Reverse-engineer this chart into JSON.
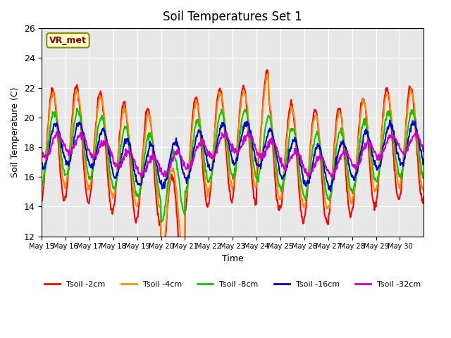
{
  "title": "Soil Temperatures Set 1",
  "xlabel": "Time",
  "ylabel": "Soil Temperature (C)",
  "ylim": [
    12,
    26
  ],
  "yticks": [
    12,
    14,
    16,
    18,
    20,
    22,
    24,
    26
  ],
  "annotation_text": "VR_met",
  "series_colors": [
    "#FF0000",
    "#FF8C00",
    "#00CC00",
    "#0000CD",
    "#CC00CC"
  ],
  "series_labels": [
    "Tsoil -2cm",
    "Tsoil -4cm",
    "Tsoil -8cm",
    "Tsoil -16cm",
    "Tsoil -32cm"
  ],
  "background_color": "#E8E8E8",
  "n_days": 16,
  "xtick_labels": [
    "May 15",
    "May 16",
    "May 17",
    "May 18",
    "May 19",
    "May 20",
    "May 21",
    "May 22",
    "May 23",
    "May 24",
    "May 25",
    "May 26",
    "May 27",
    "May 28",
    "May 29",
    "May 30"
  ]
}
